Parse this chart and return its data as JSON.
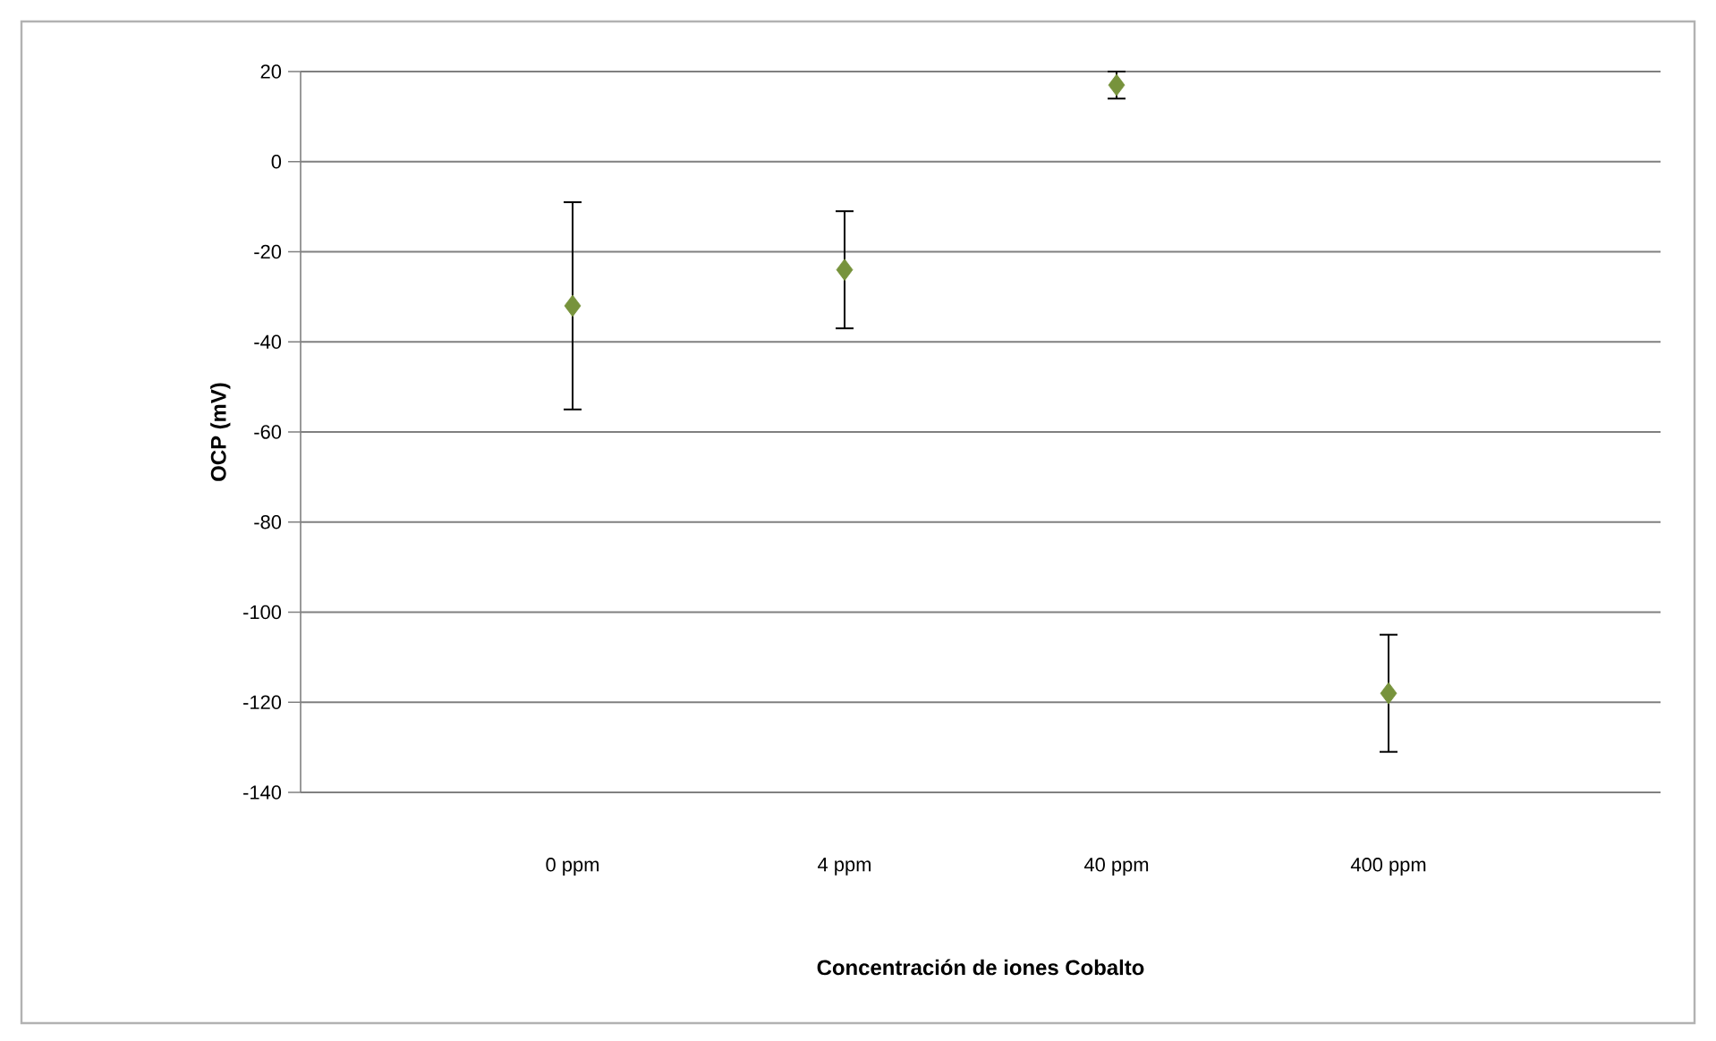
{
  "chart_data": {
    "type": "scatter",
    "xlabel": "Concentración de iones Cobalto",
    "ylabel": "OCP (mV)",
    "categories": [
      null,
      "0 ppm",
      "4 ppm",
      "40 ppm",
      "400 ppm",
      null
    ],
    "series": [
      {
        "color": "#77933c",
        "values": [
          null,
          -32,
          -24,
          17,
          -118,
          null
        ],
        "errors": [
          null,
          23,
          13,
          3,
          13,
          null
        ]
      }
    ],
    "ylim": [
      -140,
      20
    ],
    "yticks": [
      -140,
      -120,
      -100,
      -80,
      -60,
      -40,
      -20,
      0,
      20
    ],
    "grid": "y",
    "marker": "diamond"
  }
}
